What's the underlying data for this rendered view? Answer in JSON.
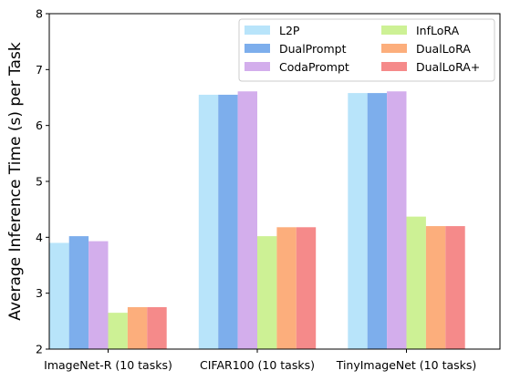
{
  "chart_data": {
    "type": "bar",
    "title": "",
    "xlabel": "",
    "ylabel": "Average Inference Time (s) per Task",
    "ylim": [
      2,
      8
    ],
    "yticks": [
      2,
      3,
      4,
      5,
      6,
      7,
      8
    ],
    "grid": false,
    "legend_position": "top-right",
    "legend_columns": 2,
    "categories": [
      "ImageNet-R (10 tasks)",
      "CIFAR100 (10 tasks)",
      "TinyImageNet (10 tasks)"
    ],
    "series": [
      {
        "name": "L2P",
        "color": "#b8e4fa",
        "values": [
          3.9,
          6.55,
          6.58
        ]
      },
      {
        "name": "DualPrompt",
        "color": "#7daeec",
        "values": [
          4.02,
          6.55,
          6.58
        ]
      },
      {
        "name": "CodaPrompt",
        "color": "#d3aeec",
        "values": [
          3.93,
          6.61,
          6.61
        ]
      },
      {
        "name": "InfLoRA",
        "color": "#cdf195",
        "values": [
          2.65,
          4.02,
          4.37
        ]
      },
      {
        "name": "DualLoRA",
        "color": "#fcae7c",
        "values": [
          2.75,
          4.18,
          4.2
        ]
      },
      {
        "name": "DualLoRA+",
        "color": "#f58a8a",
        "values": [
          2.75,
          4.18,
          4.2
        ]
      }
    ]
  }
}
